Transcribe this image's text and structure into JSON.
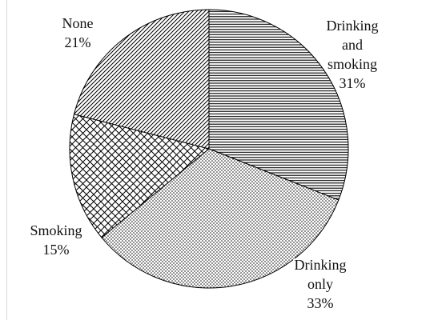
{
  "chart_data": {
    "type": "pie",
    "slices": [
      {
        "label_lines": [
          "Drinking",
          "and",
          "smoking"
        ],
        "percent_label": "31%",
        "value": 31,
        "pattern": "horizontal-lines"
      },
      {
        "label_lines": [
          "Drinking",
          "only"
        ],
        "percent_label": "33%",
        "value": 33,
        "pattern": "dots"
      },
      {
        "label_lines": [
          "Smoking"
        ],
        "percent_label": "15%",
        "value": 15,
        "pattern": "crosshatch"
      },
      {
        "label_lines": [
          "None"
        ],
        "percent_label": "21%",
        "value": 21,
        "pattern": "diagonal-lines"
      }
    ],
    "start_angle": "12 o'clock",
    "direction": "clockwise",
    "legend": "none",
    "colors": {
      "fill": "#ffffff",
      "stroke": "#000000",
      "pattern_ink": "#000000"
    }
  }
}
